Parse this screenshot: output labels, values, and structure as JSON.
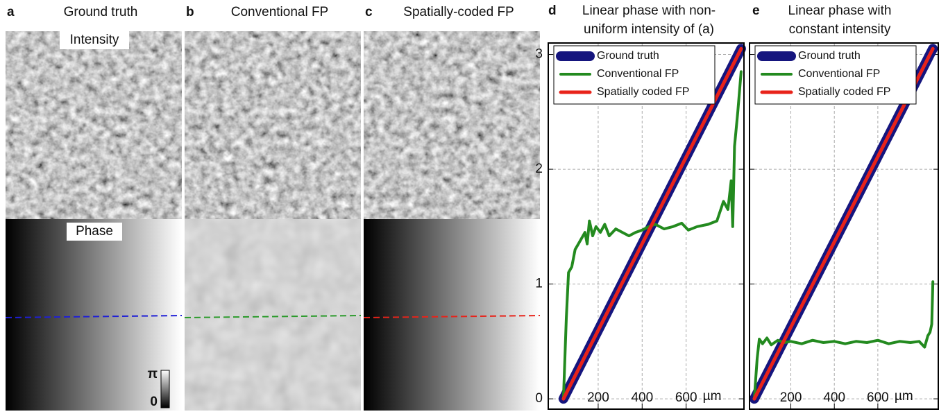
{
  "panels": [
    {
      "label": "a",
      "title": "Ground truth",
      "intensity_label": "Intensity",
      "phase_label": "Phase",
      "colorbar": {
        "max_label": "π",
        "min_label": "0"
      },
      "line_color": "#1f1fd6"
    },
    {
      "label": "b",
      "title": "Conventional FP",
      "line_color": "#2a9a2a"
    },
    {
      "label": "c",
      "title": "Spatially-coded FP",
      "line_color": "#e8231a"
    }
  ],
  "chart_data": [
    {
      "type": "line",
      "label": "d",
      "title": [
        "Linear phase with non-",
        "uniform intensity of (a)"
      ],
      "xlim": [
        -27,
        863
      ],
      "ylim": [
        -0.09,
        3.1
      ],
      "xticks": [
        200,
        400,
        600
      ],
      "yticks": [
        0,
        1,
        2,
        3
      ],
      "x_unit": "µm",
      "grid": true,
      "legend": "upper left",
      "series": [
        {
          "name": "Ground truth",
          "color": "#15157e",
          "x": [
            42,
            850
          ],
          "values": [
            0,
            3.05
          ]
        },
        {
          "name": "Conventional FP",
          "color": "#238a1f",
          "x": [
            42,
            55,
            65,
            80,
            95,
            110,
            125,
            140,
            150,
            160,
            175,
            190,
            210,
            230,
            250,
            280,
            310,
            340,
            370,
            400,
            430,
            460,
            500,
            540,
            580,
            610,
            650,
            700,
            740,
            770,
            790,
            805,
            812,
            820,
            835,
            850
          ],
          "values": [
            0,
            0.7,
            1.1,
            1.15,
            1.3,
            1.35,
            1.4,
            1.45,
            1.35,
            1.55,
            1.42,
            1.5,
            1.45,
            1.52,
            1.42,
            1.48,
            1.45,
            1.42,
            1.45,
            1.47,
            1.5,
            1.52,
            1.48,
            1.5,
            1.53,
            1.47,
            1.5,
            1.52,
            1.55,
            1.72,
            1.65,
            1.9,
            1.5,
            2.2,
            2.5,
            2.85
          ]
        },
        {
          "name": "Spatially coded FP",
          "color": "#e8231a",
          "x": [
            42,
            850
          ],
          "values": [
            0,
            3.05
          ]
        }
      ]
    },
    {
      "type": "line",
      "label": "e",
      "title": [
        "Linear phase with",
        "constant intensity"
      ],
      "xlim": [
        10,
        878
      ],
      "ylim": [
        -0.09,
        3.1
      ],
      "xticks": [
        200,
        400,
        600
      ],
      "yticks": [
        0,
        1,
        2,
        3
      ],
      "x_unit": "µm",
      "grid": true,
      "legend": "upper left",
      "series": [
        {
          "name": "Ground truth",
          "color": "#15157e",
          "x": [
            32,
            853
          ],
          "values": [
            0,
            3.05
          ]
        },
        {
          "name": "Conventional FP",
          "color": "#238a1f",
          "x": [
            32,
            45,
            55,
            70,
            90,
            110,
            140,
            170,
            200,
            250,
            300,
            350,
            400,
            450,
            500,
            550,
            600,
            650,
            700,
            750,
            790,
            815,
            830,
            840,
            848,
            853
          ],
          "values": [
            0,
            0.35,
            0.52,
            0.48,
            0.53,
            0.47,
            0.51,
            0.49,
            0.5,
            0.48,
            0.51,
            0.49,
            0.5,
            0.48,
            0.5,
            0.49,
            0.51,
            0.48,
            0.5,
            0.49,
            0.5,
            0.45,
            0.55,
            0.58,
            0.65,
            1.02
          ]
        },
        {
          "name": "Spatially coded FP",
          "color": "#e8231a",
          "x": [
            32,
            853
          ],
          "values": [
            0,
            3.05
          ]
        }
      ]
    }
  ]
}
